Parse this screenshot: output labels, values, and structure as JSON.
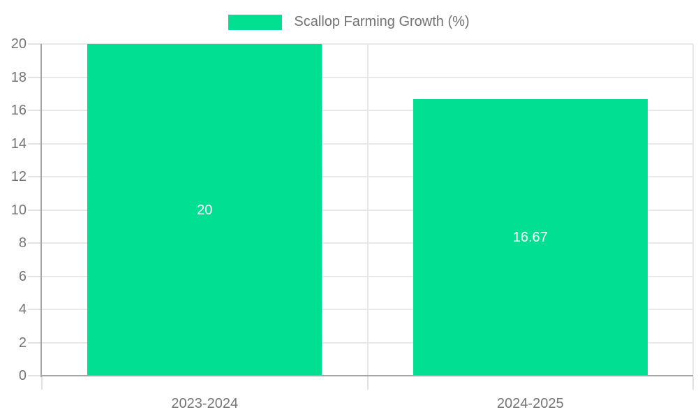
{
  "chart_data": {
    "type": "bar",
    "title": "Scallop Farming Growth (%)",
    "categories": [
      "2023-2024",
      "2024-2025"
    ],
    "series": [
      {
        "name": "Scallop Farming Growth (%)",
        "values": [
          20,
          16.67
        ]
      }
    ],
    "values": [
      20,
      16.67
    ],
    "value_labels": [
      "20",
      "16.67"
    ],
    "xlabel": "",
    "ylabel": "",
    "ylim": [
      0,
      20
    ],
    "yticks": [
      0,
      2,
      4,
      6,
      8,
      10,
      12,
      14,
      16,
      18,
      20
    ],
    "grid": true,
    "legend_position": "top-center",
    "colors": {
      "bar": "#00DF92",
      "value_label": "#ffffff",
      "axis_text": "#757575",
      "legend_text": "#737373",
      "grid_line": "#e8e8e8",
      "tick_mark": "#e2e2e2",
      "axis_line": "#a6a6a6",
      "background": "#ffffff"
    }
  }
}
